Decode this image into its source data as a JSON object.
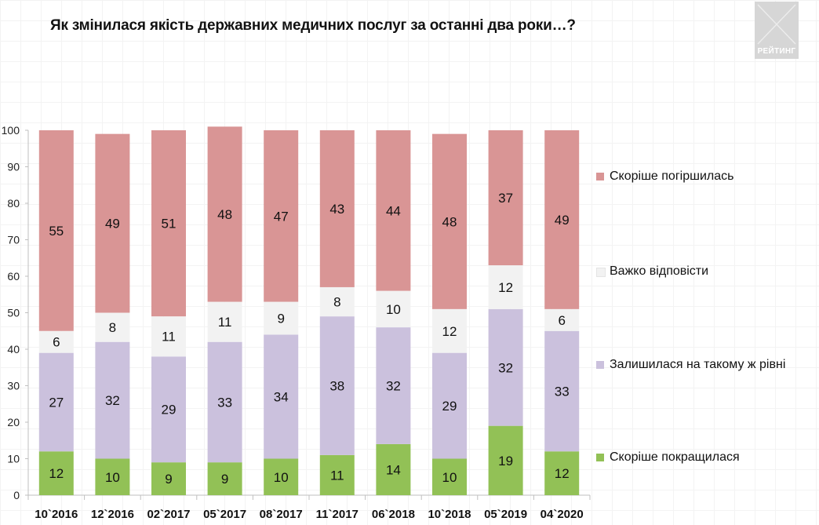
{
  "title": "Як змінилася якість державних медичних послуг за останні два роки…?",
  "logo": {
    "text": "РЕЙТИНГ"
  },
  "chart_data": {
    "type": "bar",
    "stacked": true,
    "categories": [
      "10`2016",
      "12`2016",
      "02`2017",
      "05`2017",
      "08`2017",
      "11`2017",
      "06`2018",
      "10`2018",
      "05`2019",
      "04`2020"
    ],
    "series": [
      {
        "name": "Скоріше покращилася",
        "color": "#92c156",
        "values": [
          12,
          10,
          9,
          9,
          10,
          11,
          14,
          10,
          19,
          12
        ]
      },
      {
        "name": "Залишилася на такому ж рівні",
        "color": "#cbc1dd",
        "values": [
          27,
          32,
          29,
          33,
          34,
          38,
          32,
          29,
          32,
          33
        ]
      },
      {
        "name": "Важко відповісти",
        "color": "#f2f2f2",
        "values": [
          6,
          8,
          11,
          11,
          9,
          8,
          10,
          12,
          12,
          6
        ]
      },
      {
        "name": "Скоріше погіршилась",
        "color": "#d99595",
        "values": [
          55,
          49,
          51,
          48,
          47,
          43,
          44,
          48,
          37,
          49
        ]
      }
    ],
    "yticks": [
      0,
      10,
      20,
      30,
      40,
      50,
      60,
      70,
      80,
      90,
      100
    ],
    "ylim": [
      0,
      100
    ],
    "legend_position": "right"
  }
}
